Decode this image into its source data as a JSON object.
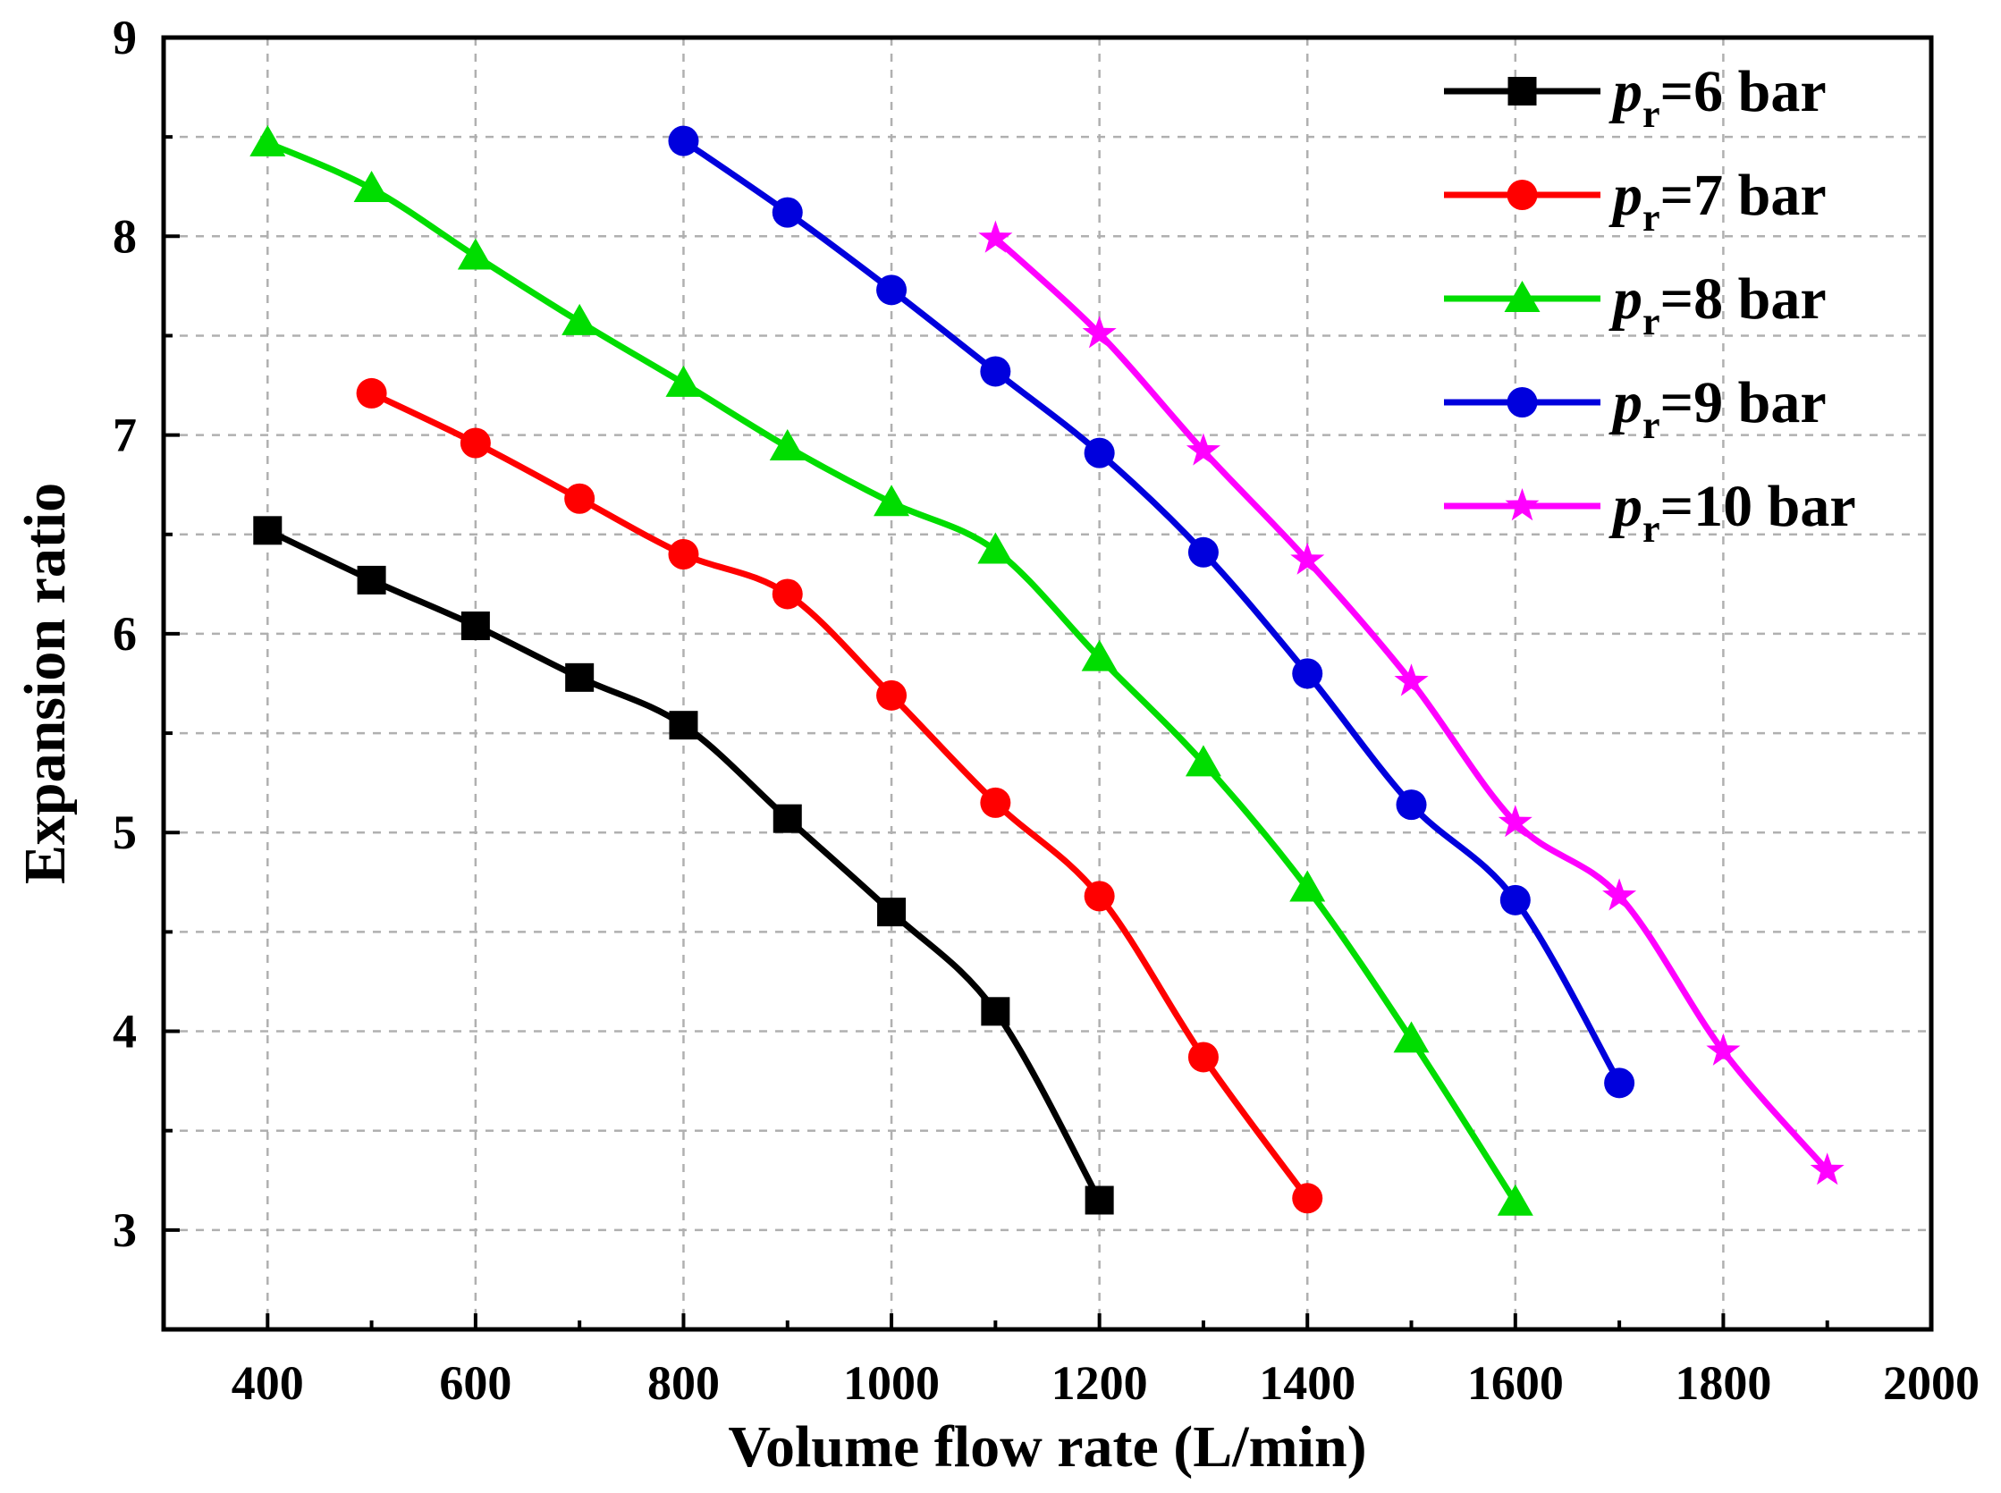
{
  "chart_data": {
    "type": "line",
    "title": "",
    "xlabel": "Volume flow rate (L/min)",
    "ylabel": "Expansion ratio",
    "xlim": [
      300,
      2000
    ],
    "ylim": [
      2.5,
      9
    ],
    "xticks": [
      400,
      600,
      800,
      1000,
      1200,
      1400,
      1600,
      1800,
      2000
    ],
    "xtick_labels": [
      "400",
      "600",
      "800",
      "1000",
      "1200",
      "1400",
      "1600",
      "1800",
      "2000"
    ],
    "yticks": [
      3,
      4,
      5,
      6,
      7,
      8,
      9
    ],
    "ytick_labels": [
      "3",
      "4",
      "5",
      "6",
      "7",
      "8",
      "9"
    ],
    "grid": true,
    "legend_position": "top-right",
    "series": [
      {
        "name": "pr=6 bar",
        "label_main": "p",
        "label_sub": "r",
        "label_rest": "=6 bar",
        "color": "#000000",
        "marker": "square",
        "x": [
          400,
          500,
          600,
          700,
          800,
          900,
          1000,
          1100,
          1200
        ],
        "y": [
          6.52,
          6.27,
          6.04,
          5.78,
          5.54,
          5.07,
          4.6,
          4.1,
          3.15
        ]
      },
      {
        "name": "pr=7 bar",
        "label_main": "p",
        "label_sub": "r",
        "label_rest": "=7 bar",
        "color": "#ff0000",
        "marker": "circle",
        "x": [
          500,
          600,
          700,
          800,
          900,
          1000,
          1100,
          1200,
          1300,
          1400
        ],
        "y": [
          7.21,
          6.96,
          6.68,
          6.4,
          6.2,
          5.69,
          5.15,
          4.68,
          3.87,
          3.16
        ]
      },
      {
        "name": "pr=8 bar",
        "label_main": "p",
        "label_sub": "r",
        "label_rest": "=8 bar",
        "color": "#00dd00",
        "marker": "triangle",
        "x": [
          400,
          500,
          600,
          700,
          800,
          900,
          1000,
          1100,
          1200,
          1300,
          1400,
          1500,
          1600
        ],
        "y": [
          8.47,
          8.24,
          7.9,
          7.57,
          7.26,
          6.94,
          6.66,
          6.42,
          5.88,
          5.35,
          4.72,
          3.96,
          3.14
        ]
      },
      {
        "name": "pr=9 bar",
        "label_main": "p",
        "label_sub": "r",
        "label_rest": "=9 bar",
        "color": "#0000dd",
        "marker": "circle",
        "x": [
          800,
          900,
          1000,
          1100,
          1200,
          1300,
          1400,
          1500,
          1600,
          1700
        ],
        "y": [
          8.48,
          8.12,
          7.73,
          7.32,
          6.91,
          6.41,
          5.8,
          5.14,
          4.66,
          3.74
        ]
      },
      {
        "name": "pr=10 bar",
        "label_main": "p",
        "label_sub": "r",
        "label_rest": "=10 bar",
        "color": "#ff00ff",
        "marker": "star",
        "x": [
          1100,
          1200,
          1300,
          1400,
          1500,
          1600,
          1700,
          1800,
          1900
        ],
        "y": [
          7.99,
          7.51,
          6.92,
          6.37,
          5.76,
          5.05,
          4.68,
          3.9,
          3.3
        ]
      }
    ]
  }
}
